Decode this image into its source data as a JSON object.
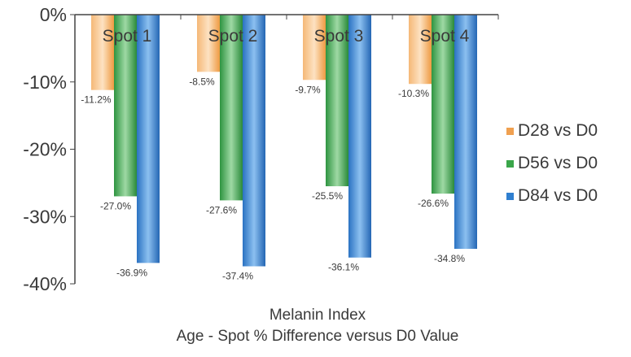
{
  "chart_data": {
    "type": "bar",
    "title": "Melanin Index",
    "subtitle": "Age - Spot % Difference versus D0 Value",
    "categories": [
      "Spot 1",
      "Spot 2",
      "Spot 3",
      "Spot 4"
    ],
    "series": [
      {
        "name": "D28 vs D0",
        "color": "#f0a050",
        "values": [
          -11.2,
          -8.5,
          -9.7,
          -10.3
        ],
        "labels": [
          "-11.2%",
          "-8.5%",
          "-9.7%",
          "-10.3%"
        ]
      },
      {
        "name": "D56 vs D0",
        "color": "#3aa64a",
        "values": [
          -27.0,
          -27.6,
          -25.5,
          -26.6
        ],
        "labels": [
          "-27.0%",
          "-27.6%",
          "-25.5%",
          "-26.6%"
        ]
      },
      {
        "name": "D84 vs D0",
        "color": "#2f7fd0",
        "values": [
          -36.9,
          -37.4,
          -36.1,
          -34.8
        ],
        "labels": [
          "-36.9%",
          "-37.4%",
          "-36.1%",
          "-34.8%"
        ]
      }
    ],
    "ylim": [
      -40,
      0
    ],
    "yticks": [
      0,
      -10,
      -20,
      -30,
      -40
    ],
    "ytick_labels": [
      "0%",
      "-10%",
      "-20%",
      "-30%",
      "-40%"
    ],
    "grid": false,
    "legend": "right"
  }
}
